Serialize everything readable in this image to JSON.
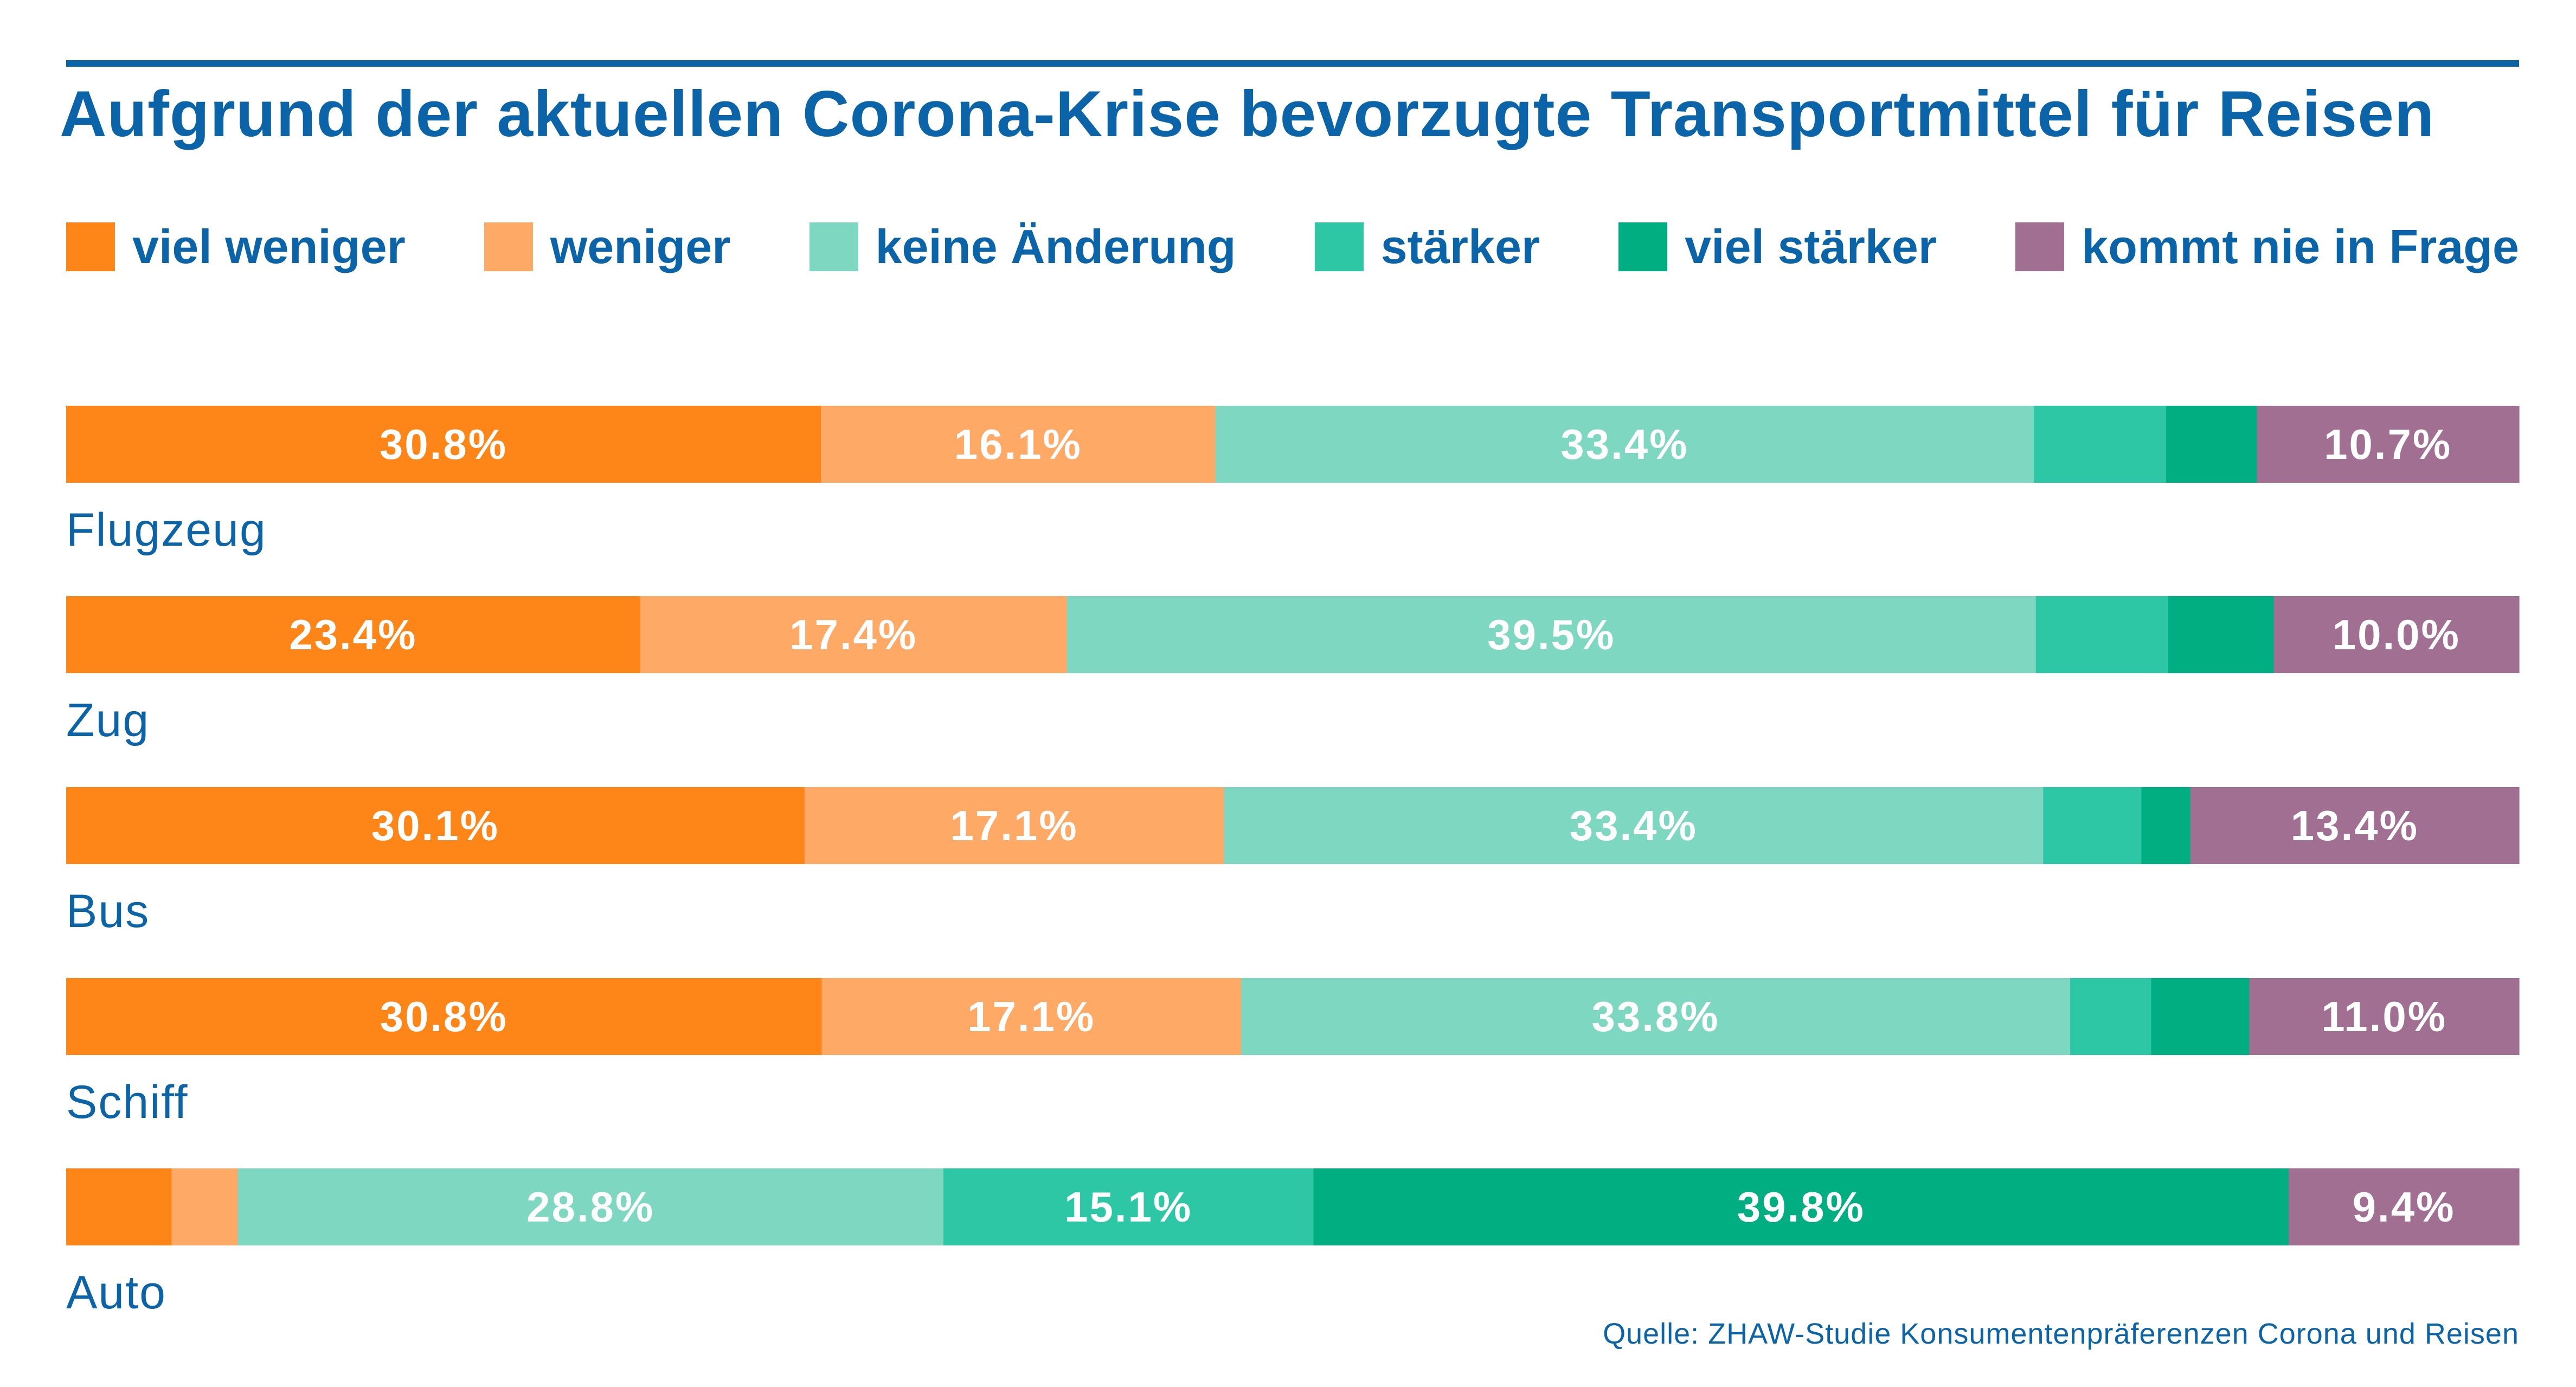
{
  "title": "Aufgrund der aktuellen Corona-Krise bevorzugte Transportmittel für Reisen",
  "source": "Quelle: ZHAW-Studie Konsumentenpräferenzen Corona und Reisen",
  "colors": {
    "viel_weniger": "#fe8517",
    "weniger": "#ffa966",
    "keine_aenderung": "#7ed7c0",
    "staerker": "#2ec7a5",
    "viel_staerker": "#00ae82",
    "kommt_nie": "#a06f91",
    "text_blue": "#0b63a8",
    "bar_text": "#ffffff"
  },
  "chart_data": {
    "type": "bar",
    "orientation": "horizontal",
    "stacked": true,
    "normalized": true,
    "title": "Aufgrund der aktuellen Corona-Krise bevorzugte Transportmittel für Reisen",
    "legend_position": "top",
    "grid": false,
    "xlim": [
      0,
      100
    ],
    "categories": [
      "Flugzeug",
      "Zug",
      "Bus",
      "Schiff",
      "Auto"
    ],
    "series": [
      {
        "name": "viel weniger",
        "color": "#fe8517",
        "values": [
          30.8,
          23.4,
          30.1,
          30.8,
          4.3
        ],
        "labels": [
          "30.8%",
          "23.4%",
          "30.1%",
          "30.8%",
          ""
        ]
      },
      {
        "name": "weniger",
        "color": "#ffa966",
        "values": [
          16.1,
          17.4,
          17.1,
          17.1,
          2.7
        ],
        "labels": [
          "16.1%",
          "17.4%",
          "17.1%",
          "17.1%",
          ""
        ]
      },
      {
        "name": "keine Änderung",
        "color": "#7ed7c0",
        "values": [
          33.4,
          39.5,
          33.4,
          33.8,
          28.8
        ],
        "labels": [
          "33.4%",
          "39.5%",
          "33.4%",
          "33.8%",
          "28.8%"
        ]
      },
      {
        "name": "stärker",
        "color": "#2ec7a5",
        "values": [
          5.4,
          5.4,
          4.0,
          3.3,
          15.1
        ],
        "labels": [
          "",
          "",
          "",
          "",
          "15.1%"
        ]
      },
      {
        "name": "viel stärker",
        "color": "#00ae82",
        "values": [
          3.7,
          4.3,
          2.0,
          4.0,
          39.8
        ],
        "labels": [
          "",
          "",
          "",
          "",
          "39.8%"
        ]
      },
      {
        "name": "kommt nie in Frage",
        "color": "#a06f91",
        "values": [
          10.7,
          10.0,
          13.4,
          11.0,
          9.4
        ],
        "labels": [
          "10.7%",
          "10.0%",
          "13.4%",
          "11.0%",
          "9.4%"
        ]
      }
    ]
  }
}
